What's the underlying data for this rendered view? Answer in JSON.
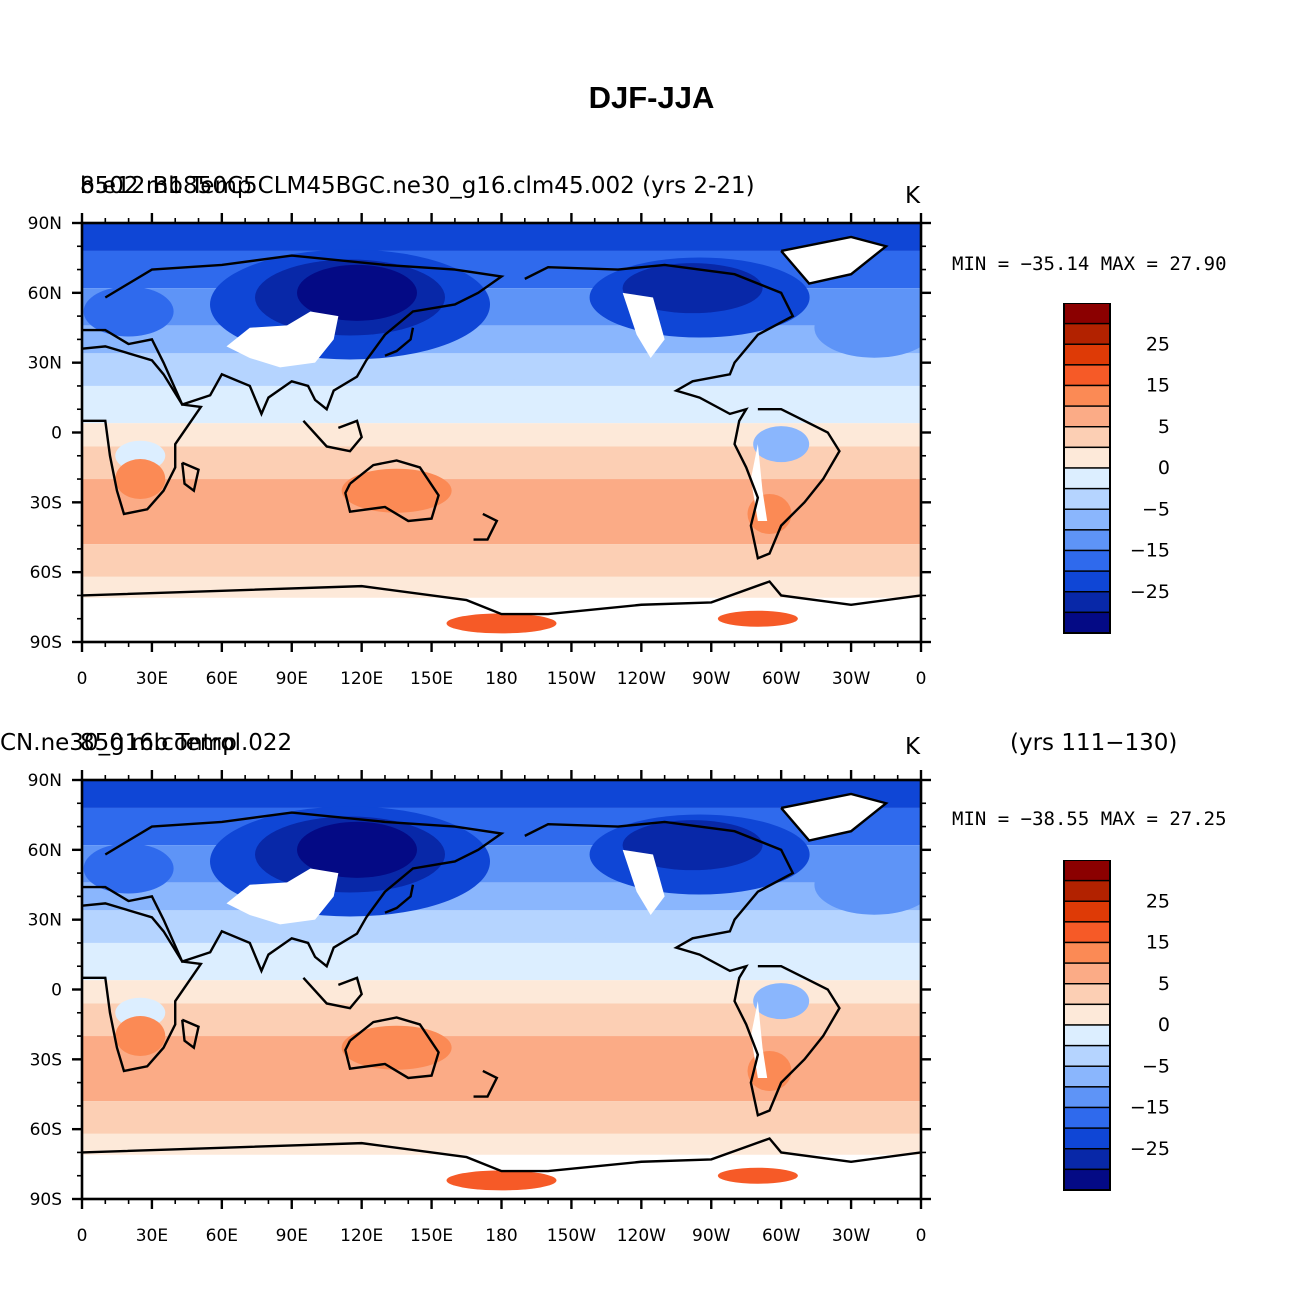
{
  "title": "DJF-JJA",
  "panels": [
    {
      "left_string": "8502 mb Temp",
      "left_string_overlap": "b.e12.B1850C5CLM45BGC.ne30_g16.clm45.002 (yrs 2-21)",
      "center_string": "",
      "right_string": "K",
      "min_max": "MIN = −35.14 MAX =  27.90"
    },
    {
      "left_string": "850 mb Temp",
      "left_string_overlap": "CN.ne30_g16.control.022",
      "center_string": "(yrs 111−130)",
      "right_string": "K",
      "min_max": "MIN = −38.55 MAX =  27.25"
    }
  ],
  "lat_labels": [
    "90N",
    "60N",
    "30N",
    "0",
    "30S",
    "60S",
    "90S"
  ],
  "lon_labels": [
    "0",
    "30E",
    "60E",
    "90E",
    "120E",
    "150E",
    "180",
    "150W",
    "120W",
    "90W",
    "60W",
    "30W",
    "0"
  ],
  "colorbar": {
    "labels": [
      "25",
      "15",
      "5",
      "0",
      "−5",
      "−15",
      "−25"
    ],
    "colors": [
      "#8b0000",
      "#b22200",
      "#de3a06",
      "#f65a27",
      "#fb8a55",
      "#fbab86",
      "#fccfb4",
      "#fde9d9",
      "#dceeff",
      "#b5d4ff",
      "#8ab6fd",
      "#5e94f7",
      "#2f6aed",
      "#0f46d6",
      "#0828a8",
      "#040a85"
    ]
  }
}
